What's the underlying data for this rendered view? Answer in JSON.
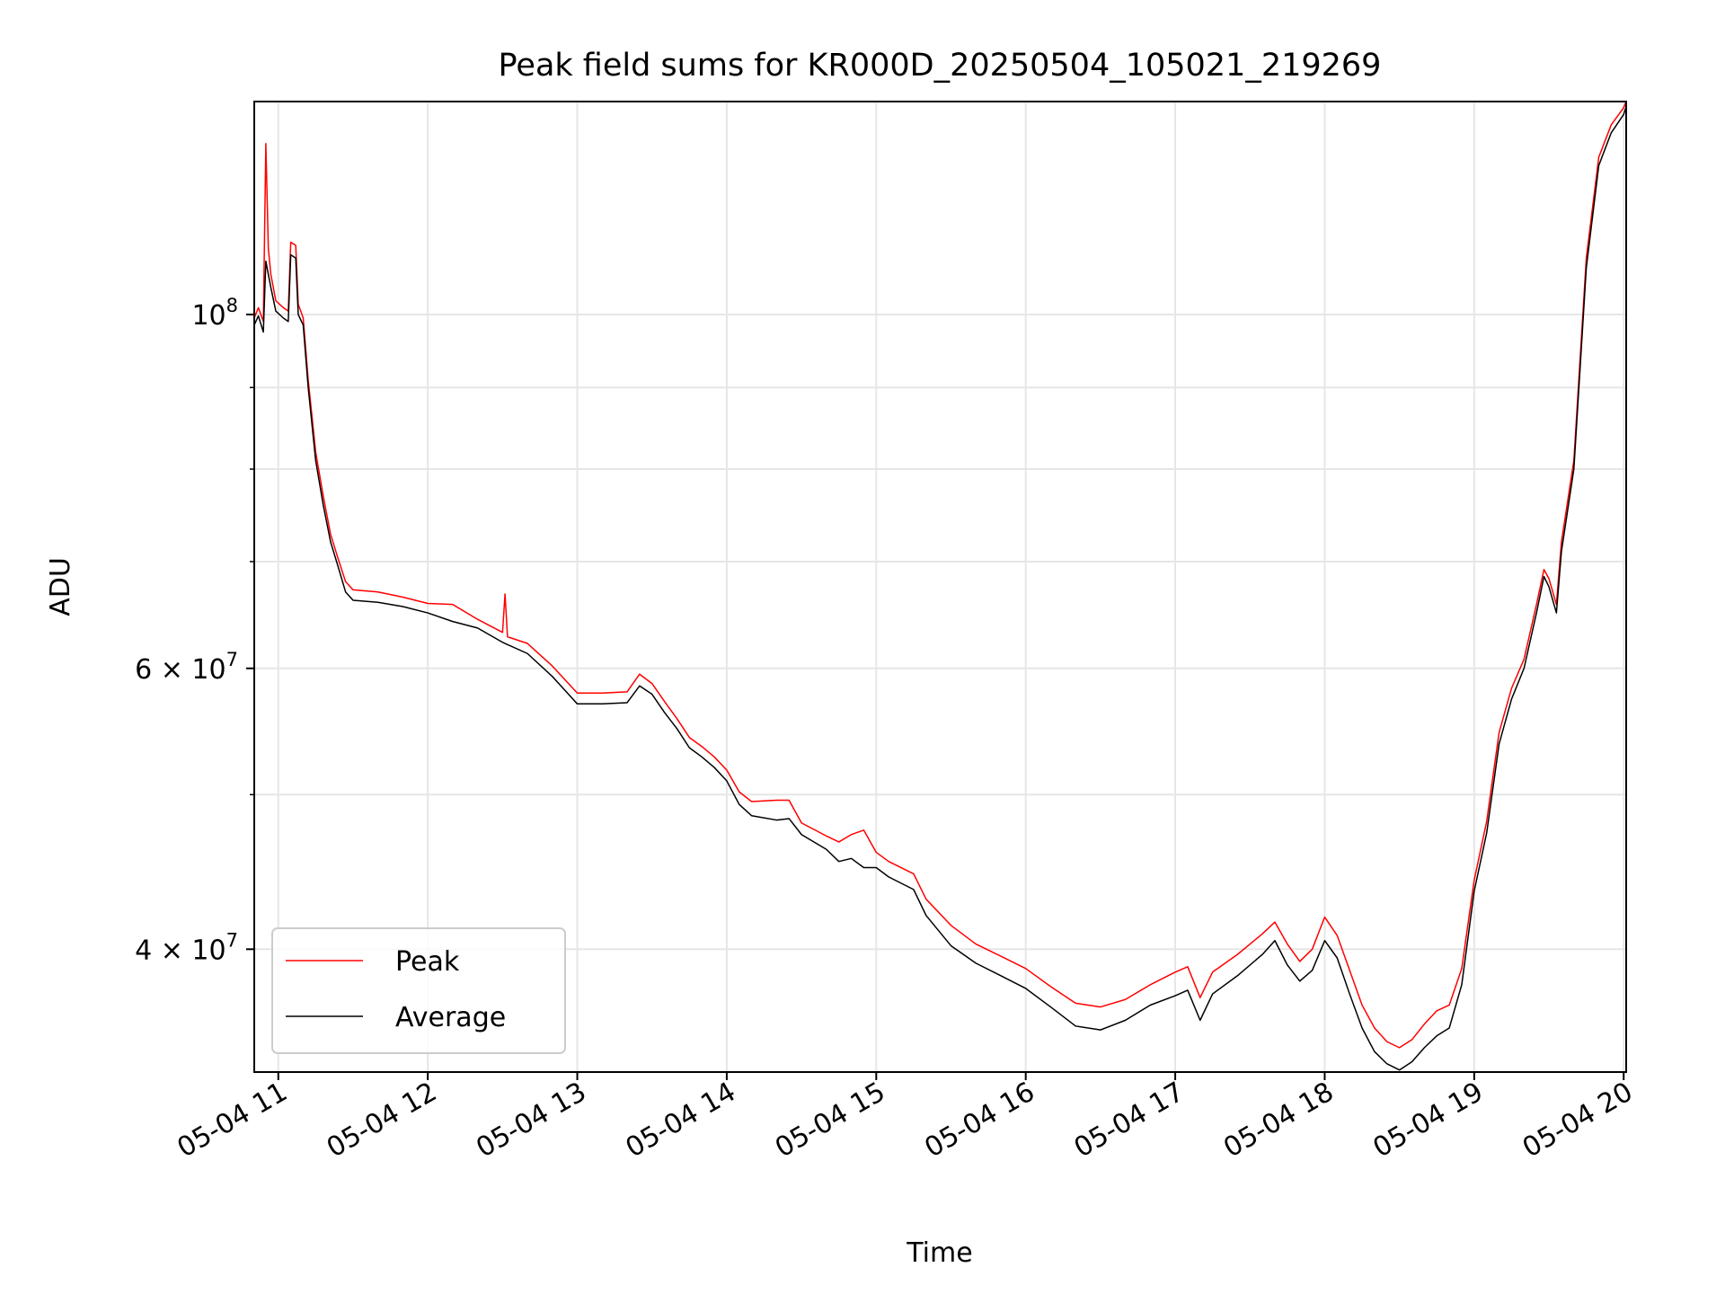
{
  "chart_data": {
    "type": "line",
    "title": "Peak field sums for KR000D_20250504_105021_219269",
    "xlabel": "Time",
    "ylabel": "ADU",
    "y_scale": "log",
    "ylim": [
      33500000,
      136000000
    ],
    "xlim": [
      "2025-05-04T10:50:21",
      "2025-05-04T20:01:00"
    ],
    "x_ticks": [
      "2025-05-04T11:00",
      "2025-05-04T12:00",
      "2025-05-04T13:00",
      "2025-05-04T14:00",
      "2025-05-04T15:00",
      "2025-05-04T16:00",
      "2025-05-04T17:00",
      "2025-05-04T18:00",
      "2025-05-04T19:00",
      "2025-05-04T20:00"
    ],
    "x_tick_labels": [
      "05-04 11",
      "05-04 12",
      "05-04 13",
      "05-04 14",
      "05-04 15",
      "05-04 16",
      "05-04 17",
      "05-04 18",
      "05-04 19",
      "05-04 20"
    ],
    "y_major_ticks": [
      {
        "value": 100000000,
        "mant": "10",
        "exp": "8"
      },
      {
        "value": 60000000,
        "mant": "6 × 10",
        "exp": "7"
      },
      {
        "value": 40000000,
        "mant": "4 × 10",
        "exp": "7"
      }
    ],
    "y_minor_ticks": [
      50000000,
      70000000,
      80000000,
      90000000
    ],
    "grid": true,
    "legend": "bottom-left",
    "series": [
      {
        "name": "Average",
        "color": "#000000",
        "points": [
          [
            "2025-05-04T10:50:21",
            98500000
          ],
          [
            "2025-05-04T10:52:00",
            99800000
          ],
          [
            "2025-05-04T10:54:00",
            97500000
          ],
          [
            "2025-05-04T10:55:00",
            108000000
          ],
          [
            "2025-05-04T10:57:00",
            104000000
          ],
          [
            "2025-05-04T10:59:00",
            100500000
          ],
          [
            "2025-05-04T11:02:00",
            99500000
          ],
          [
            "2025-05-04T11:04:00",
            99000000
          ],
          [
            "2025-05-04T11:05:00",
            109000000
          ],
          [
            "2025-05-04T11:07:00",
            108500000
          ],
          [
            "2025-05-04T11:08:00",
            100000000
          ],
          [
            "2025-05-04T11:10:00",
            98500000
          ],
          [
            "2025-05-04T11:12:00",
            90000000
          ],
          [
            "2025-05-04T11:15:00",
            81000000
          ],
          [
            "2025-05-04T11:18:00",
            76000000
          ],
          [
            "2025-05-04T11:21:00",
            72000000
          ],
          [
            "2025-05-04T11:24:00",
            69500000
          ],
          [
            "2025-05-04T11:27:00",
            67000000
          ],
          [
            "2025-05-04T11:30:00",
            66200000
          ],
          [
            "2025-05-04T11:40:00",
            66000000
          ],
          [
            "2025-05-04T11:50:00",
            65600000
          ],
          [
            "2025-05-04T12:00:00",
            65000000
          ],
          [
            "2025-05-04T12:10:00",
            64200000
          ],
          [
            "2025-05-04T12:20:00",
            63600000
          ],
          [
            "2025-05-04T12:30:00",
            62300000
          ],
          [
            "2025-05-04T12:40:00",
            61300000
          ],
          [
            "2025-05-04T12:50:00",
            59300000
          ],
          [
            "2025-05-04T13:00:00",
            57000000
          ],
          [
            "2025-05-04T13:10:00",
            57000000
          ],
          [
            "2025-05-04T13:20:00",
            57100000
          ],
          [
            "2025-05-04T13:25:00",
            58500000
          ],
          [
            "2025-05-04T13:30:00",
            57800000
          ],
          [
            "2025-05-04T13:35:00",
            56300000
          ],
          [
            "2025-05-04T13:40:00",
            55000000
          ],
          [
            "2025-05-04T13:45:00",
            53500000
          ],
          [
            "2025-05-04T13:50:00",
            52800000
          ],
          [
            "2025-05-04T13:55:00",
            52000000
          ],
          [
            "2025-05-04T14:00:00",
            51000000
          ],
          [
            "2025-05-04T14:05:00",
            49300000
          ],
          [
            "2025-05-04T14:10:00",
            48500000
          ],
          [
            "2025-05-04T14:20:00",
            48200000
          ],
          [
            "2025-05-04T14:25:00",
            48300000
          ],
          [
            "2025-05-04T14:30:00",
            47200000
          ],
          [
            "2025-05-04T14:40:00",
            46200000
          ],
          [
            "2025-05-04T14:45:00",
            45400000
          ],
          [
            "2025-05-04T14:50:00",
            45600000
          ],
          [
            "2025-05-04T14:55:00",
            45000000
          ],
          [
            "2025-05-04T15:00:00",
            45000000
          ],
          [
            "2025-05-04T15:05:00",
            44400000
          ],
          [
            "2025-05-04T15:15:00",
            43600000
          ],
          [
            "2025-05-04T15:20:00",
            42000000
          ],
          [
            "2025-05-04T15:30:00",
            40200000
          ],
          [
            "2025-05-04T15:40:00",
            39200000
          ],
          [
            "2025-05-04T15:50:00",
            38500000
          ],
          [
            "2025-05-04T16:00:00",
            37800000
          ],
          [
            "2025-05-04T16:10:00",
            36800000
          ],
          [
            "2025-05-04T16:20:00",
            35800000
          ],
          [
            "2025-05-04T16:30:00",
            35600000
          ],
          [
            "2025-05-04T16:40:00",
            36100000
          ],
          [
            "2025-05-04T16:50:00",
            36900000
          ],
          [
            "2025-05-04T17:00:00",
            37400000
          ],
          [
            "2025-05-04T17:05:00",
            37700000
          ],
          [
            "2025-05-04T17:10:00",
            36100000
          ],
          [
            "2025-05-04T17:15:00",
            37500000
          ],
          [
            "2025-05-04T17:25:00",
            38500000
          ],
          [
            "2025-05-04T17:35:00",
            39700000
          ],
          [
            "2025-05-04T17:40:00",
            40500000
          ],
          [
            "2025-05-04T17:45:00",
            39100000
          ],
          [
            "2025-05-04T17:50:00",
            38200000
          ],
          [
            "2025-05-04T17:55:00",
            38800000
          ],
          [
            "2025-05-04T18:00:00",
            40500000
          ],
          [
            "2025-05-04T18:05:00",
            39500000
          ],
          [
            "2025-05-04T18:10:00",
            37500000
          ],
          [
            "2025-05-04T18:15:00",
            35700000
          ],
          [
            "2025-05-04T18:20:00",
            34500000
          ],
          [
            "2025-05-04T18:25:00",
            33900000
          ],
          [
            "2025-05-04T18:30:00",
            33600000
          ],
          [
            "2025-05-04T18:35:00",
            34000000
          ],
          [
            "2025-05-04T18:40:00",
            34700000
          ],
          [
            "2025-05-04T18:45:00",
            35300000
          ],
          [
            "2025-05-04T18:50:00",
            35700000
          ],
          [
            "2025-05-04T18:55:00",
            38000000
          ],
          [
            "2025-05-04T19:00:00",
            43500000
          ],
          [
            "2025-05-04T19:05:00",
            47300000
          ],
          [
            "2025-05-04T19:10:00",
            53800000
          ],
          [
            "2025-05-04T19:15:00",
            57400000
          ],
          [
            "2025-05-04T19:20:00",
            60000000
          ],
          [
            "2025-05-04T19:25:00",
            65000000
          ],
          [
            "2025-05-04T19:28:00",
            68500000
          ],
          [
            "2025-05-04T19:30:00",
            67500000
          ],
          [
            "2025-05-04T19:33:00",
            65000000
          ],
          [
            "2025-05-04T19:35:00",
            71000000
          ],
          [
            "2025-05-04T19:40:00",
            80000000
          ],
          [
            "2025-05-04T19:45:00",
            107000000
          ],
          [
            "2025-05-04T19:50:00",
            124000000
          ],
          [
            "2025-05-04T19:55:00",
            130000000
          ],
          [
            "2025-05-04T20:00:00",
            133500000
          ],
          [
            "2025-05-04T20:01:00",
            135000000
          ]
        ]
      },
      {
        "name": "Peak",
        "color": "#ff0000",
        "points": [
          [
            "2025-05-04T10:50:21",
            99500000
          ],
          [
            "2025-05-04T10:52:00",
            101000000
          ],
          [
            "2025-05-04T10:54:00",
            99000000
          ],
          [
            "2025-05-04T10:55:00",
            128000000
          ],
          [
            "2025-05-04T10:56:00",
            110000000
          ],
          [
            "2025-05-04T10:57:00",
            106000000
          ],
          [
            "2025-05-04T10:59:00",
            102000000
          ],
          [
            "2025-05-04T11:02:00",
            101000000
          ],
          [
            "2025-05-04T11:04:00",
            100500000
          ],
          [
            "2025-05-04T11:05:00",
            111000000
          ],
          [
            "2025-05-04T11:07:00",
            110500000
          ],
          [
            "2025-05-04T11:08:00",
            101500000
          ],
          [
            "2025-05-04T11:10:00",
            99500000
          ],
          [
            "2025-05-04T11:12:00",
            91000000
          ],
          [
            "2025-05-04T11:15:00",
            82000000
          ],
          [
            "2025-05-04T11:18:00",
            77000000
          ],
          [
            "2025-05-04T11:21:00",
            72800000
          ],
          [
            "2025-05-04T11:24:00",
            70300000
          ],
          [
            "2025-05-04T11:27:00",
            68000000
          ],
          [
            "2025-05-04T11:30:00",
            67200000
          ],
          [
            "2025-05-04T11:40:00",
            67000000
          ],
          [
            "2025-05-04T11:50:00",
            66500000
          ],
          [
            "2025-05-04T12:00:00",
            65900000
          ],
          [
            "2025-05-04T12:10:00",
            65800000
          ],
          [
            "2025-05-04T12:20:00",
            64400000
          ],
          [
            "2025-05-04T12:30:00",
            63200000
          ],
          [
            "2025-05-04T12:31:00",
            66800000
          ],
          [
            "2025-05-04T12:32:00",
            62800000
          ],
          [
            "2025-05-04T12:40:00",
            62200000
          ],
          [
            "2025-05-04T12:50:00",
            60200000
          ],
          [
            "2025-05-04T13:00:00",
            57900000
          ],
          [
            "2025-05-04T13:10:00",
            57900000
          ],
          [
            "2025-05-04T13:20:00",
            58000000
          ],
          [
            "2025-05-04T13:25:00",
            59500000
          ],
          [
            "2025-05-04T13:30:00",
            58700000
          ],
          [
            "2025-05-04T13:35:00",
            57200000
          ],
          [
            "2025-05-04T13:40:00",
            55800000
          ],
          [
            "2025-05-04T13:45:00",
            54300000
          ],
          [
            "2025-05-04T13:50:00",
            53600000
          ],
          [
            "2025-05-04T13:55:00",
            52800000
          ],
          [
            "2025-05-04T14:00:00",
            51800000
          ],
          [
            "2025-05-04T14:05:00",
            50200000
          ],
          [
            "2025-05-04T14:10:00",
            49500000
          ],
          [
            "2025-05-04T14:20:00",
            49600000
          ],
          [
            "2025-05-04T14:25:00",
            49600000
          ],
          [
            "2025-05-04T14:30:00",
            48000000
          ],
          [
            "2025-05-04T14:40:00",
            47100000
          ],
          [
            "2025-05-04T14:45:00",
            46700000
          ],
          [
            "2025-05-04T14:50:00",
            47200000
          ],
          [
            "2025-05-04T14:55:00",
            47500000
          ],
          [
            "2025-05-04T15:00:00",
            46000000
          ],
          [
            "2025-05-04T15:05:00",
            45400000
          ],
          [
            "2025-05-04T15:15:00",
            44600000
          ],
          [
            "2025-05-04T15:20:00",
            43000000
          ],
          [
            "2025-05-04T15:30:00",
            41400000
          ],
          [
            "2025-05-04T15:40:00",
            40300000
          ],
          [
            "2025-05-04T15:50:00",
            39600000
          ],
          [
            "2025-05-04T16:00:00",
            38900000
          ],
          [
            "2025-05-04T16:10:00",
            37900000
          ],
          [
            "2025-05-04T16:20:00",
            37000000
          ],
          [
            "2025-05-04T16:30:00",
            36800000
          ],
          [
            "2025-05-04T16:40:00",
            37200000
          ],
          [
            "2025-05-04T16:50:00",
            38000000
          ],
          [
            "2025-05-04T17:00:00",
            38700000
          ],
          [
            "2025-05-04T17:05:00",
            39000000
          ],
          [
            "2025-05-04T17:10:00",
            37300000
          ],
          [
            "2025-05-04T17:15:00",
            38700000
          ],
          [
            "2025-05-04T17:25:00",
            39700000
          ],
          [
            "2025-05-04T17:35:00",
            40900000
          ],
          [
            "2025-05-04T17:40:00",
            41600000
          ],
          [
            "2025-05-04T17:45:00",
            40300000
          ],
          [
            "2025-05-04T17:50:00",
            39300000
          ],
          [
            "2025-05-04T17:55:00",
            40000000
          ],
          [
            "2025-05-04T18:00:00",
            41900000
          ],
          [
            "2025-05-04T18:05:00",
            40800000
          ],
          [
            "2025-05-04T18:10:00",
            38800000
          ],
          [
            "2025-05-04T18:15:00",
            36900000
          ],
          [
            "2025-05-04T18:20:00",
            35700000
          ],
          [
            "2025-05-04T18:25:00",
            35000000
          ],
          [
            "2025-05-04T18:30:00",
            34700000
          ],
          [
            "2025-05-04T18:35:00",
            35100000
          ],
          [
            "2025-05-04T18:40:00",
            35900000
          ],
          [
            "2025-05-04T18:45:00",
            36600000
          ],
          [
            "2025-05-04T18:50:00",
            36900000
          ],
          [
            "2025-05-04T18:55:00",
            38900000
          ],
          [
            "2025-05-04T19:00:00",
            44200000
          ],
          [
            "2025-05-04T19:05:00",
            48100000
          ],
          [
            "2025-05-04T19:10:00",
            54700000
          ],
          [
            "2025-05-04T19:15:00",
            58300000
          ],
          [
            "2025-05-04T19:20:00",
            60800000
          ],
          [
            "2025-05-04T19:25:00",
            65800000
          ],
          [
            "2025-05-04T19:28:00",
            69200000
          ],
          [
            "2025-05-04T19:30:00",
            68300000
          ],
          [
            "2025-05-04T19:33:00",
            65800000
          ],
          [
            "2025-05-04T19:35:00",
            72000000
          ],
          [
            "2025-05-04T19:40:00",
            81000000
          ],
          [
            "2025-05-04T19:45:00",
            108500000
          ],
          [
            "2025-05-04T19:50:00",
            125500000
          ],
          [
            "2025-05-04T19:55:00",
            131500000
          ],
          [
            "2025-05-04T20:00:00",
            134800000
          ],
          [
            "2025-05-04T20:01:00",
            136000000
          ]
        ]
      }
    ]
  }
}
